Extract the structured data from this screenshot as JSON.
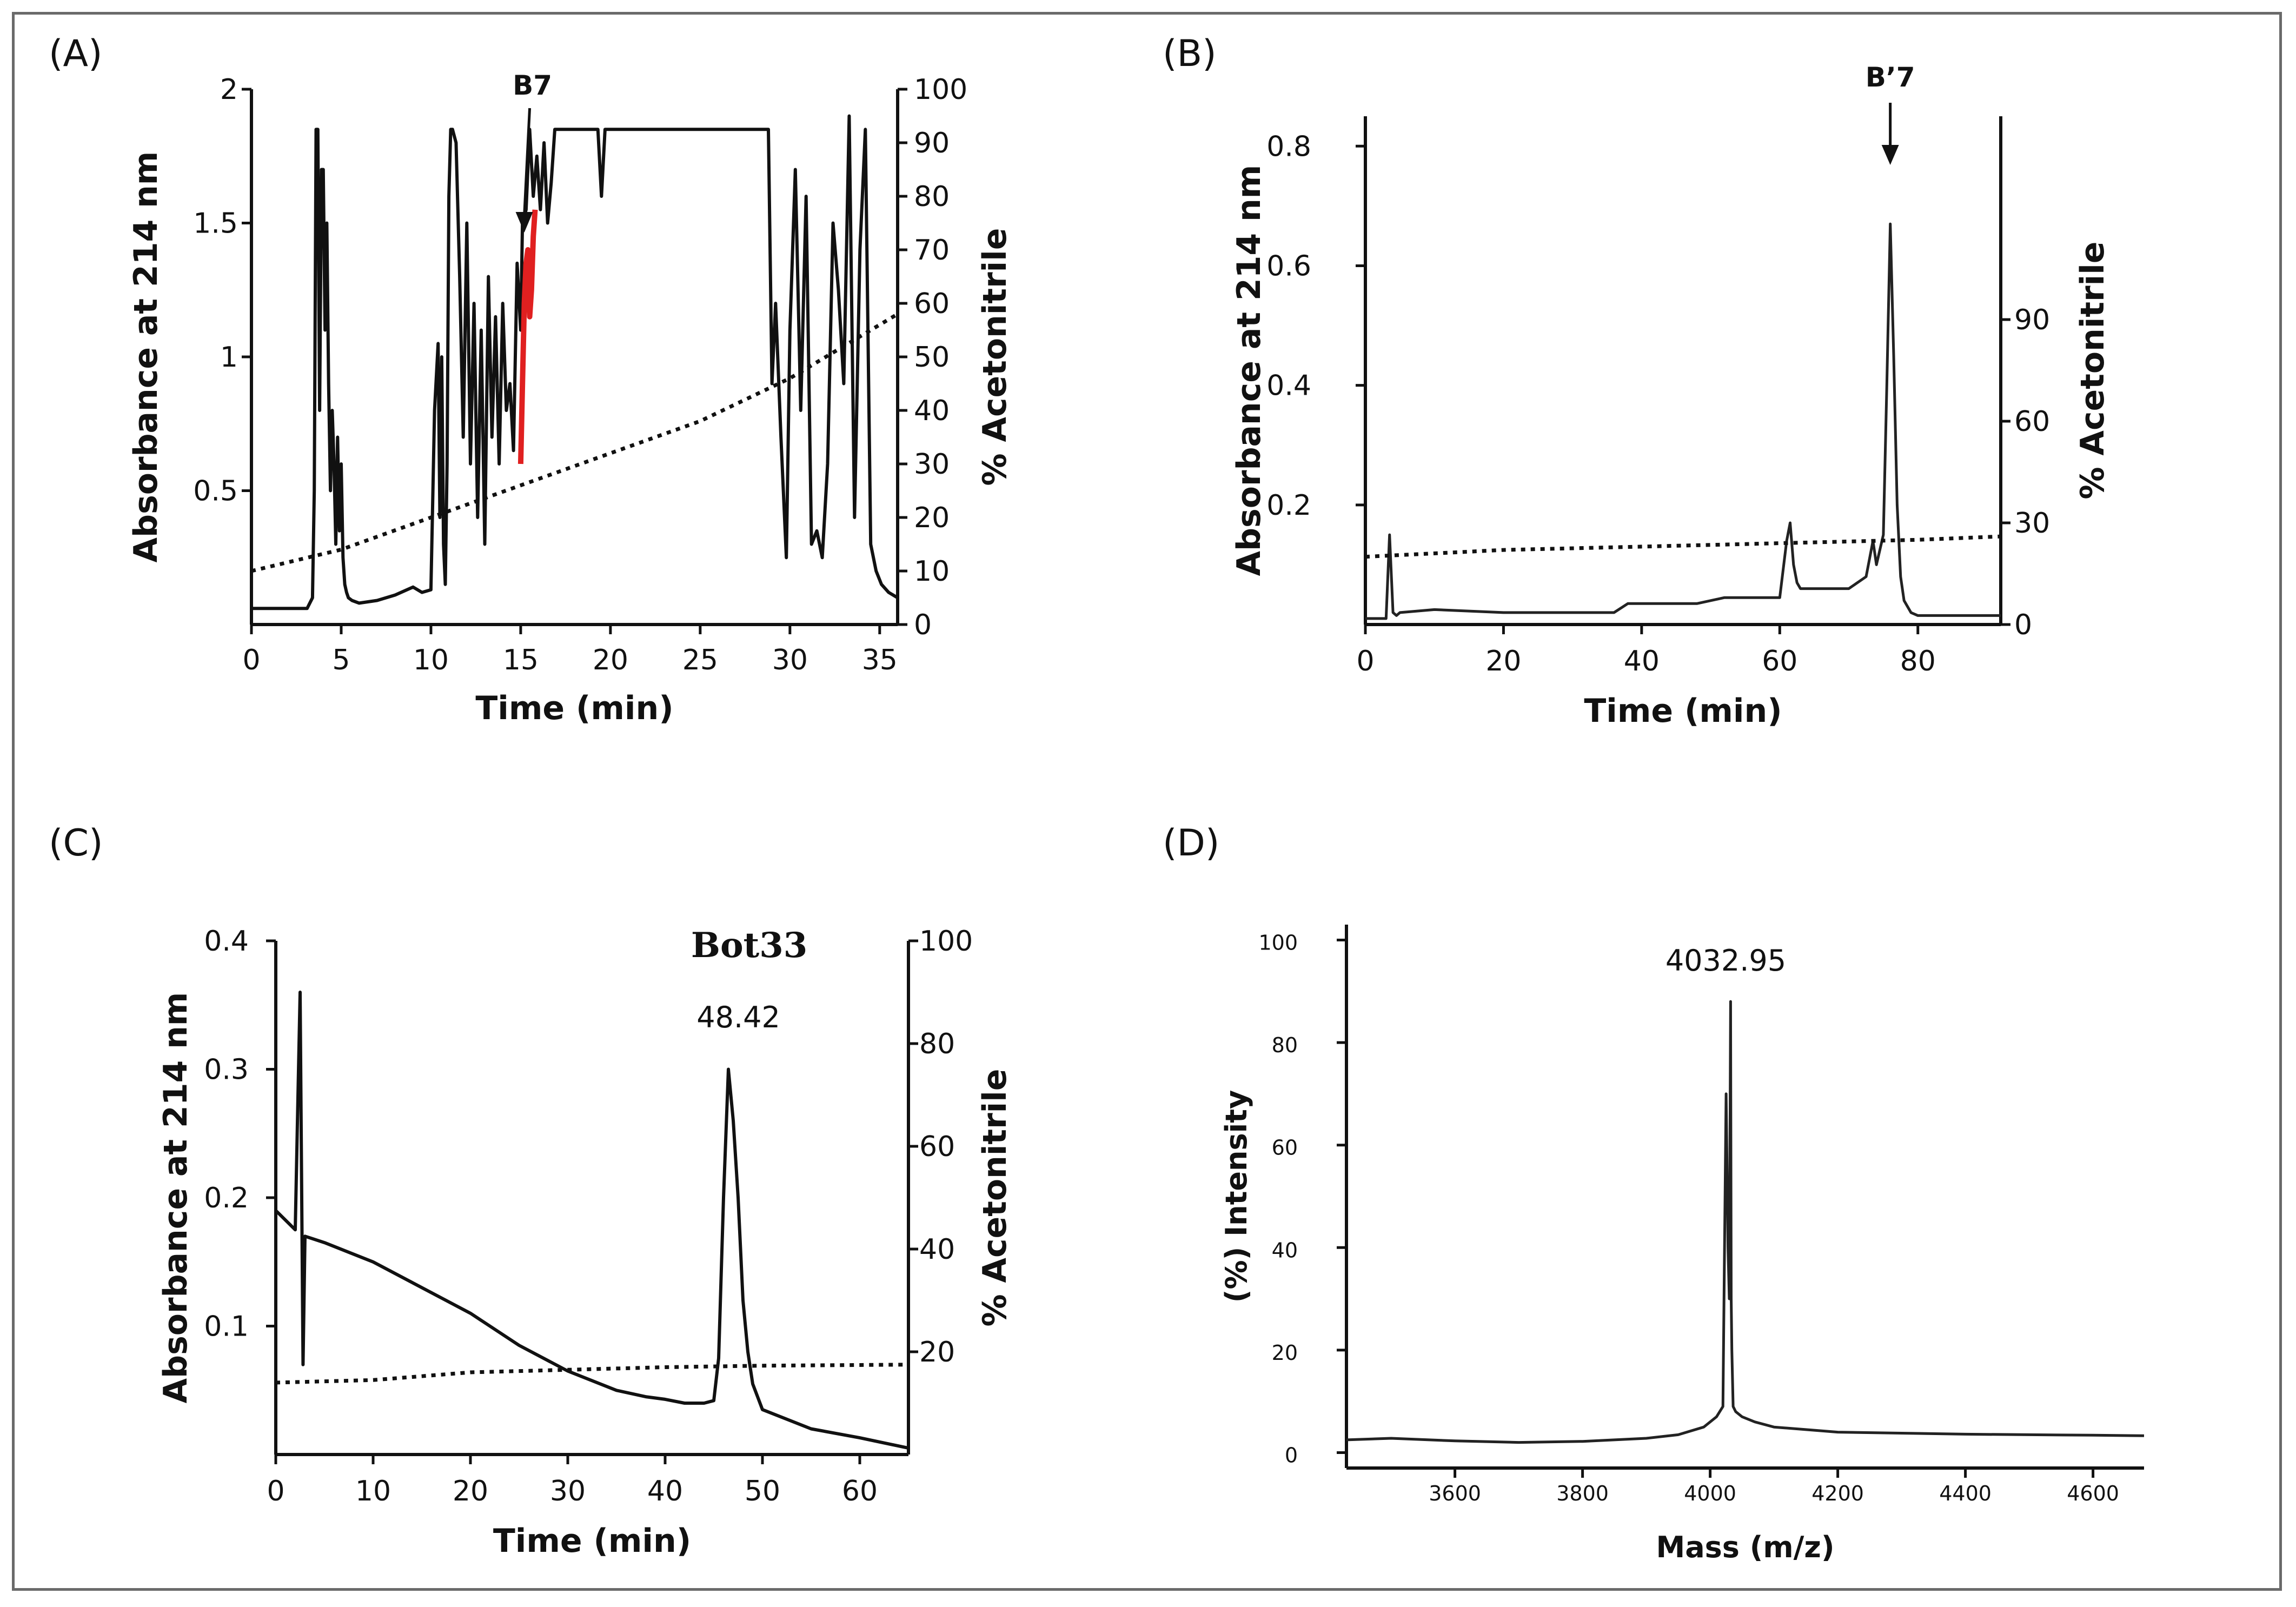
{
  "figure": {
    "panels": [
      "(A)",
      "(B)",
      "(C)",
      "(D)"
    ]
  },
  "colors": {
    "ink": "#111111",
    "highlight": "#e02020",
    "frame": "#6a6a6a"
  },
  "chart_data": [
    {
      "panel": "(A)",
      "type": "line",
      "xlabel": "Time (min)",
      "ylabel": "Absorbance at 214 nm",
      "y2label": "% Acetonitrile",
      "xlim": [
        0,
        36
      ],
      "ylim": [
        0,
        2
      ],
      "y2lim": [
        0,
        100
      ],
      "xticks": [
        0,
        5,
        10,
        15,
        20,
        25,
        30,
        35
      ],
      "yticks": [
        0.5,
        1,
        1.5,
        2
      ],
      "y2ticks": [
        0,
        10,
        20,
        30,
        40,
        50,
        60,
        70,
        80,
        90,
        100
      ],
      "annotation": "B7",
      "annotation_x": 15.2,
      "series": [
        {
          "name": "Absorbance",
          "axis": "left",
          "x": [
            0,
            3,
            3.1,
            3.4,
            3.5,
            3.6,
            3.7,
            3.8,
            3.9,
            4.0,
            4.1,
            4.2,
            4.3,
            4.4,
            4.5,
            4.6,
            4.7,
            4.8,
            4.9,
            5.0,
            5.1,
            5.2,
            5.3,
            5.4,
            5.6,
            6,
            7,
            8,
            9,
            9.5,
            10,
            10.2,
            10.4,
            10.5,
            10.6,
            10.7,
            10.8,
            10.9,
            11,
            11.1,
            11.2,
            11.4,
            11.6,
            11.8,
            12,
            12.2,
            12.4,
            12.6,
            12.8,
            13,
            13.2,
            13.4,
            13.6,
            13.8,
            14,
            14.2,
            14.4,
            14.6,
            14.8,
            15,
            15.1,
            15.3,
            15.5,
            15.7,
            15.9,
            16.1,
            16.3,
            16.5,
            16.7,
            16.9,
            17.1,
            17.3,
            17.6,
            18,
            19,
            19.3,
            19.5,
            19.7,
            20,
            25,
            28.8,
            29,
            29.2,
            29.5,
            29.8,
            30,
            30.3,
            30.6,
            30.9,
            31.2,
            31.5,
            31.8,
            32.1,
            32.4,
            32.7,
            33,
            33.3,
            33.6,
            33.9,
            34.2,
            34.5,
            34.8,
            35.1,
            35.5,
            36
          ],
          "y": [
            0.06,
            0.06,
            0.06,
            0.1,
            0.5,
            1.85,
            1.85,
            0.8,
            1.7,
            1.7,
            1.1,
            1.5,
            0.9,
            0.5,
            0.8,
            0.6,
            0.3,
            0.7,
            0.35,
            0.6,
            0.25,
            0.15,
            0.12,
            0.1,
            0.09,
            0.08,
            0.09,
            0.11,
            0.14,
            0.12,
            0.13,
            0.8,
            1.05,
            0.4,
            1.0,
            0.3,
            0.15,
            0.6,
            1.6,
            1.85,
            1.85,
            1.8,
            1.3,
            0.7,
            1.5,
            0.6,
            1.2,
            0.4,
            1.1,
            0.3,
            1.3,
            0.7,
            1.15,
            0.6,
            1.2,
            0.8,
            0.9,
            0.65,
            1.35,
            1.1,
            1.5,
            1.55,
            1.85,
            1.6,
            1.75,
            1.55,
            1.8,
            1.5,
            1.65,
            1.85,
            1.85,
            1.85,
            1.85,
            1.85,
            1.85,
            1.85,
            1.6,
            1.85,
            1.85,
            1.85,
            1.85,
            0.9,
            1.2,
            0.7,
            0.25,
            1.1,
            1.7,
            0.8,
            1.6,
            0.3,
            0.35,
            0.25,
            0.6,
            1.5,
            1.25,
            0.9,
            1.9,
            0.4,
            1.4,
            1.85,
            0.3,
            0.2,
            0.15,
            0.12,
            0.1
          ]
        },
        {
          "name": "B7 fraction",
          "axis": "left",
          "x": [
            15.0,
            15.1,
            15.2,
            15.3,
            15.4,
            15.5,
            15.6,
            15.7,
            15.8
          ],
          "y": [
            0.6,
            0.9,
            1.2,
            1.35,
            1.4,
            1.15,
            1.25,
            1.45,
            1.55
          ]
        },
        {
          "name": "% Acetonitrile",
          "axis": "right",
          "style": "dotted",
          "x": [
            0,
            5,
            10,
            15,
            20,
            25,
            30,
            36
          ],
          "y": [
            10,
            14,
            20,
            26,
            32,
            38,
            46,
            58
          ]
        }
      ]
    },
    {
      "panel": "(B)",
      "type": "line",
      "xlabel": "Time (min)",
      "ylabel": "Absorbance at 214 nm",
      "y2label": "% Acetonitrile",
      "xlim": [
        0,
        92
      ],
      "ylim": [
        0,
        0.85
      ],
      "y2lim": [
        0,
        150
      ],
      "xticks": [
        0,
        20,
        40,
        60,
        80
      ],
      "yticks": [
        0.2,
        0.4,
        0.6,
        0.8
      ],
      "y2ticks": [
        0,
        30,
        60,
        90
      ],
      "annotation": "B’7",
      "annotation_x": 76,
      "series": [
        {
          "name": "Absorbance",
          "axis": "left",
          "x": [
            0,
            3,
            3.5,
            4,
            4.5,
            5,
            10,
            20,
            30,
            36,
            38,
            48,
            52,
            60,
            61,
            61.5,
            62,
            62.5,
            63,
            65,
            70,
            72.5,
            73.5,
            74,
            75,
            75.5,
            76,
            76.5,
            77,
            77.5,
            78,
            79,
            80,
            92
          ],
          "y": [
            0.01,
            0.01,
            0.15,
            0.02,
            0.015,
            0.02,
            0.025,
            0.02,
            0.02,
            0.02,
            0.035,
            0.035,
            0.045,
            0.045,
            0.14,
            0.17,
            0.1,
            0.07,
            0.06,
            0.06,
            0.06,
            0.08,
            0.14,
            0.1,
            0.15,
            0.4,
            0.67,
            0.45,
            0.2,
            0.08,
            0.04,
            0.02,
            0.015,
            0.015
          ]
        },
        {
          "name": "% Acetonitrile",
          "axis": "right",
          "style": "dotted",
          "x": [
            0,
            20,
            40,
            60,
            80,
            92
          ],
          "y": [
            20,
            22,
            23,
            24,
            25,
            26
          ]
        }
      ]
    },
    {
      "panel": "(C)",
      "type": "line",
      "xlabel": "Time (min)",
      "ylabel": "Absorbance at 214 nm",
      "y2label": "% Acetonitrile",
      "xlim": [
        0,
        65
      ],
      "ylim": [
        0,
        0.4
      ],
      "y2lim": [
        0,
        100
      ],
      "xticks": [
        0,
        10,
        20,
        30,
        40,
        50,
        60
      ],
      "yticks": [
        0.1,
        0.2,
        0.3,
        0.4
      ],
      "y2ticks": [
        20,
        40,
        60,
        80,
        100
      ],
      "annotation": "Bot33",
      "peak_label": "48.42",
      "annotation_x": 46.7,
      "series": [
        {
          "name": "Absorbance",
          "axis": "left",
          "x": [
            0,
            2,
            2.2,
            2.5,
            2.8,
            3,
            5,
            10,
            15,
            20,
            25,
            30,
            35,
            38,
            40,
            42,
            44,
            45,
            45.5,
            46,
            46.5,
            47,
            47.5,
            48,
            48.5,
            49,
            50,
            55,
            60,
            65
          ],
          "y": [
            0.19,
            0.175,
            0.25,
            0.36,
            0.07,
            0.17,
            0.165,
            0.15,
            0.13,
            0.11,
            0.085,
            0.065,
            0.05,
            0.045,
            0.043,
            0.04,
            0.04,
            0.042,
            0.075,
            0.2,
            0.3,
            0.26,
            0.2,
            0.12,
            0.08,
            0.055,
            0.035,
            0.02,
            0.013,
            0.005
          ]
        },
        {
          "name": "% Acetonitrile",
          "axis": "right",
          "style": "dotted",
          "x": [
            0,
            10,
            20,
            30,
            40,
            50,
            65
          ],
          "y": [
            14,
            14.5,
            16,
            16.5,
            17,
            17.3,
            17.5
          ]
        }
      ]
    },
    {
      "panel": "(D)",
      "type": "line",
      "xlabel": "Mass (m/z)",
      "ylabel": "(%) Intensity",
      "xlim": [
        3430,
        4680
      ],
      "ylim": [
        -3,
        103
      ],
      "xticks": [
        3600,
        3800,
        4000,
        4200,
        4400,
        4600
      ],
      "yticks": [
        0,
        20,
        40,
        60,
        80,
        100
      ],
      "annotation": "4032.95",
      "annotation_x": 4032.95,
      "series": [
        {
          "name": "Spectrum",
          "axis": "left",
          "x": [
            3430,
            3500,
            3600,
            3700,
            3800,
            3900,
            3950,
            3990,
            4010,
            4020,
            4025,
            4028,
            4030,
            4032,
            4033,
            4034,
            4036,
            4040,
            4050,
            4070,
            4100,
            4150,
            4200,
            4300,
            4400,
            4500,
            4600,
            4680
          ],
          "y": [
            2.5,
            2.8,
            2.3,
            2.0,
            2.2,
            2.8,
            3.5,
            5,
            7,
            9,
            70,
            40,
            30,
            88,
            30,
            20,
            9,
            8,
            7,
            6,
            5,
            4.5,
            4,
            3.8,
            3.6,
            3.5,
            3.4,
            3.3
          ]
        }
      ]
    }
  ]
}
